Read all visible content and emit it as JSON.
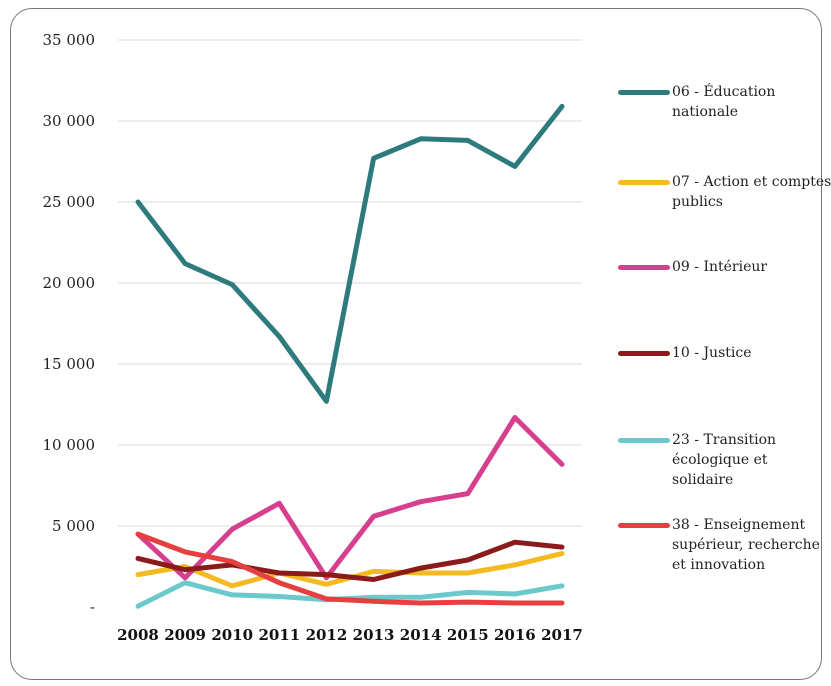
{
  "chart_data": {
    "type": "line",
    "title": "",
    "xlabel": "",
    "ylabel": "",
    "ylim": [
      0,
      35000
    ],
    "y_ticks": [
      {
        "value": 0,
        "label": "-"
      },
      {
        "value": 5000,
        "label": "5 000"
      },
      {
        "value": 10000,
        "label": "10 000"
      },
      {
        "value": 15000,
        "label": "15 000"
      },
      {
        "value": 20000,
        "label": "20 000"
      },
      {
        "value": 25000,
        "label": "25 000"
      },
      {
        "value": 30000,
        "label": "30 000"
      },
      {
        "value": 35000,
        "label": "35 000"
      }
    ],
    "grid": true,
    "legend_position": "right",
    "categories": [
      "2008",
      "2009",
      "2010",
      "2011",
      "2012",
      "2013",
      "2014",
      "2015",
      "2016",
      "2017"
    ],
    "series": [
      {
        "name": "06 - Éducation nationale",
        "color": "#2E7B7E",
        "values": [
          25000,
          21200,
          19900,
          16700,
          12700,
          27700,
          28900,
          28800,
          27200,
          30900
        ]
      },
      {
        "name": "07 - Action et comptes publics",
        "color": "#F5B921",
        "values": [
          2000,
          2500,
          1300,
          2100,
          1400,
          2200,
          2100,
          2100,
          2600,
          3300
        ]
      },
      {
        "name": "09 - Intérieur",
        "color": "#D63F8E",
        "values": [
          4500,
          1800,
          4800,
          6400,
          1800,
          5600,
          6500,
          7000,
          11700,
          8800
        ]
      },
      {
        "name": "10 - Justice",
        "color": "#8B1A1A",
        "values": [
          3000,
          2300,
          2600,
          2100,
          2000,
          1700,
          2400,
          2900,
          4000,
          3700
        ]
      },
      {
        "name": "23 - Transition écologique et solidaire",
        "color": "#6CC9CB",
        "values": [
          50,
          1500,
          750,
          650,
          450,
          600,
          600,
          900,
          800,
          1300
        ]
      },
      {
        "name": "38 - Enseignement supérieur, recherche et innovation",
        "color": "#E5403F",
        "values": [
          4500,
          3400,
          2800,
          1500,
          500,
          350,
          250,
          300,
          250,
          250
        ]
      }
    ]
  }
}
